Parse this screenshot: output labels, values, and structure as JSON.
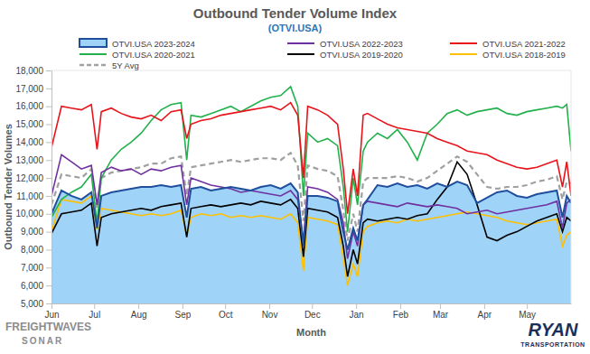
{
  "chart_data": {
    "type": "line",
    "title": "Outbound Tender Volume Index",
    "subtitle": "(OTVI.USA)",
    "x_label": "Month",
    "y_label": "Outbound Tender Volumes",
    "annotations": [
      "FREIGHTWAVES",
      "SONAR",
      "RYAN",
      "TRANSPORTATION"
    ],
    "grid": false,
    "legend": "top",
    "xlim": [
      0,
      365
    ],
    "xticks": [
      {
        "value": 0,
        "label": "Jun"
      },
      {
        "value": 30,
        "label": "Jul"
      },
      {
        "value": 61,
        "label": "Aug"
      },
      {
        "value": 92,
        "label": "Sep"
      },
      {
        "value": 122,
        "label": "Oct"
      },
      {
        "value": 153,
        "label": "Nov"
      },
      {
        "value": 183,
        "label": "Dec"
      },
      {
        "value": 214,
        "label": "Jan"
      },
      {
        "value": 245,
        "label": "Feb"
      },
      {
        "value": 273,
        "label": "Mar"
      },
      {
        "value": 304,
        "label": "Apr"
      },
      {
        "value": 334,
        "label": "May"
      }
    ],
    "ylim": [
      5000,
      18000
    ],
    "yticks": [
      {
        "value": 5000,
        "label": "5,000"
      },
      {
        "value": 6000,
        "label": "6,000"
      },
      {
        "value": 7000,
        "label": "7,000"
      },
      {
        "value": 8000,
        "label": "8,000"
      },
      {
        "value": 9000,
        "label": "9,000"
      },
      {
        "value": 10000,
        "label": "10,000"
      },
      {
        "value": 11000,
        "label": "11,000"
      },
      {
        "value": 12000,
        "label": "12,000"
      },
      {
        "value": 13000,
        "label": "13,000"
      },
      {
        "value": 14000,
        "label": "14,000"
      },
      {
        "value": 15000,
        "label": "15,000"
      },
      {
        "value": 16000,
        "label": "16,000"
      },
      {
        "value": 17000,
        "label": "17,000"
      },
      {
        "value": 18000,
        "label": "18,000"
      }
    ],
    "x": [
      0,
      7,
      14,
      21,
      28,
      32,
      35,
      42,
      49,
      56,
      63,
      70,
      77,
      84,
      91,
      95,
      98,
      105,
      112,
      119,
      126,
      133,
      140,
      147,
      154,
      161,
      168,
      173,
      177,
      180,
      187,
      194,
      201,
      205,
      208,
      212,
      215,
      219,
      222,
      229,
      236,
      243,
      250,
      257,
      264,
      271,
      278,
      285,
      292,
      299,
      306,
      313,
      320,
      327,
      334,
      341,
      348,
      355,
      359,
      362,
      365
    ],
    "series": [
      {
        "name": "OTVI.USA 2023-2024",
        "type": "area",
        "color": "#1f4e9c",
        "values": [
          10000,
          11300,
          11000,
          10800,
          11200,
          9200,
          11000,
          11200,
          11300,
          11400,
          11500,
          11500,
          11600,
          11500,
          11600,
          9800,
          11400,
          11500,
          11300,
          11400,
          11500,
          11400,
          11300,
          11500,
          11600,
          11400,
          11700,
          11200,
          8200,
          11000,
          11000,
          10900,
          10700,
          9000,
          8000,
          9200,
          8500,
          10500,
          10800,
          11600,
          11500,
          11700,
          11500,
          11600,
          11400,
          11700,
          11500,
          11800,
          11600,
          10600,
          10900,
          11200,
          11300,
          11000,
          10900,
          11100,
          11200,
          11300,
          9800,
          11000,
          10600
        ]
      },
      {
        "name": "OTVI.USA 2022-2023",
        "color": "#7030a0",
        "values": [
          11000,
          13300,
          12900,
          12500,
          12700,
          10500,
          12300,
          12600,
          12400,
          12500,
          12200,
          12500,
          12400,
          12600,
          12700,
          10500,
          12000,
          11800,
          11600,
          11500,
          11400,
          11200,
          11300,
          11200,
          11100,
          11000,
          11300,
          10800,
          8500,
          11500,
          11400,
          11200,
          10800,
          9500,
          7500,
          9000,
          8200,
          10500,
          10700,
          10600,
          10500,
          10400,
          10600,
          10500,
          10400,
          10500,
          10400,
          10300,
          10000,
          10100,
          10200,
          10000,
          10100,
          10200,
          10300,
          10400,
          10500,
          10700,
          9200,
          10600,
          10800
        ]
      },
      {
        "name": "OTVI.USA 2021-2022",
        "color": "#e8141b",
        "values": [
          13700,
          16000,
          15900,
          15800,
          16100,
          13600,
          15700,
          15900,
          15600,
          15400,
          15300,
          15500,
          15200,
          15700,
          15800,
          14200,
          15000,
          15200,
          15300,
          15500,
          15600,
          15700,
          15800,
          15900,
          16000,
          15800,
          16200,
          15500,
          12000,
          16000,
          15800,
          15500,
          15000,
          12500,
          10000,
          12500,
          11000,
          15500,
          15600,
          15300,
          15000,
          14800,
          14700,
          14600,
          14500,
          14200,
          14000,
          13800,
          13500,
          13400,
          13300,
          13000,
          12800,
          12600,
          12500,
          12600,
          12800,
          13000,
          11500,
          12900,
          11000
        ]
      },
      {
        "name": "OTVI.USA 2020-2021",
        "color": "#22b14c",
        "values": [
          9800,
          10800,
          11200,
          11500,
          12200,
          9500,
          12000,
          13000,
          13600,
          14000,
          14500,
          15200,
          15800,
          16100,
          16200,
          13000,
          15500,
          15400,
          15600,
          15800,
          16000,
          15700,
          16000,
          16300,
          16500,
          16600,
          17100,
          16000,
          11000,
          14500,
          14000,
          14200,
          13800,
          11500,
          9000,
          12000,
          10500,
          13500,
          14000,
          14500,
          14200,
          14700,
          14000,
          13000,
          14500,
          15000,
          15600,
          15800,
          15500,
          15700,
          15800,
          15900,
          15600,
          15500,
          15700,
          15800,
          15900,
          16000,
          15900,
          16100,
          13500
        ]
      },
      {
        "name": "OTVI.USA 2019-2020",
        "color": "#000000",
        "values": [
          8900,
          10000,
          10100,
          10200,
          10600,
          8200,
          9800,
          10000,
          10100,
          10200,
          10300,
          10200,
          10400,
          10500,
          10600,
          8700,
          10300,
          10400,
          10500,
          10400,
          10500,
          10600,
          10500,
          10700,
          10600,
          10500,
          10800,
          10300,
          7600,
          10300,
          10200,
          10100,
          9800,
          8200,
          6500,
          8000,
          7200,
          9500,
          9700,
          9600,
          9700,
          9800,
          9700,
          9900,
          10000,
          10800,
          11500,
          12900,
          12200,
          10500,
          8700,
          8500,
          8800,
          9000,
          9300,
          9600,
          9800,
          10000,
          9000,
          9800,
          9600
        ]
      },
      {
        "name": "OTVI.USA 2018-2019",
        "color": "#ffc000",
        "values": [
          9000,
          10800,
          10700,
          10600,
          11000,
          9100,
          10300,
          10200,
          10100,
          10000,
          9900,
          10000,
          9900,
          10000,
          10200,
          8800,
          9800,
          10000,
          9900,
          10000,
          9800,
          9900,
          9800,
          9900,
          9800,
          9700,
          10000,
          9500,
          6800,
          9800,
          9700,
          9600,
          9400,
          7500,
          6000,
          7200,
          6500,
          9000,
          9300,
          9500,
          9600,
          9500,
          9700,
          9600,
          9700,
          9800,
          9900,
          10000,
          10100,
          10000,
          9900,
          9800,
          9600,
          9500,
          9400,
          9500,
          9600,
          9700,
          8200,
          8800,
          9000
        ]
      },
      {
        "name": "5Y Avg",
        "color": "#a0a0a0",
        "line_style": "dashed",
        "values": [
          10500,
          12200,
          12100,
          12000,
          12500,
          10300,
          12000,
          12300,
          12400,
          12500,
          12600,
          12800,
          12800,
          13100,
          13200,
          11000,
          12600,
          12700,
          12800,
          12900,
          13000,
          12900,
          13000,
          13100,
          13100,
          13000,
          13400,
          12700,
          9600,
          12700,
          12500,
          12400,
          12100,
          10200,
          8500,
          10000,
          9000,
          11800,
          12000,
          12000,
          12000,
          12100,
          12000,
          11800,
          12000,
          12400,
          12800,
          13200,
          12900,
          12200,
          11500,
          11400,
          11500,
          11500,
          11600,
          11800,
          11900,
          12100,
          10800,
          11800,
          11700
        ]
      }
    ]
  }
}
